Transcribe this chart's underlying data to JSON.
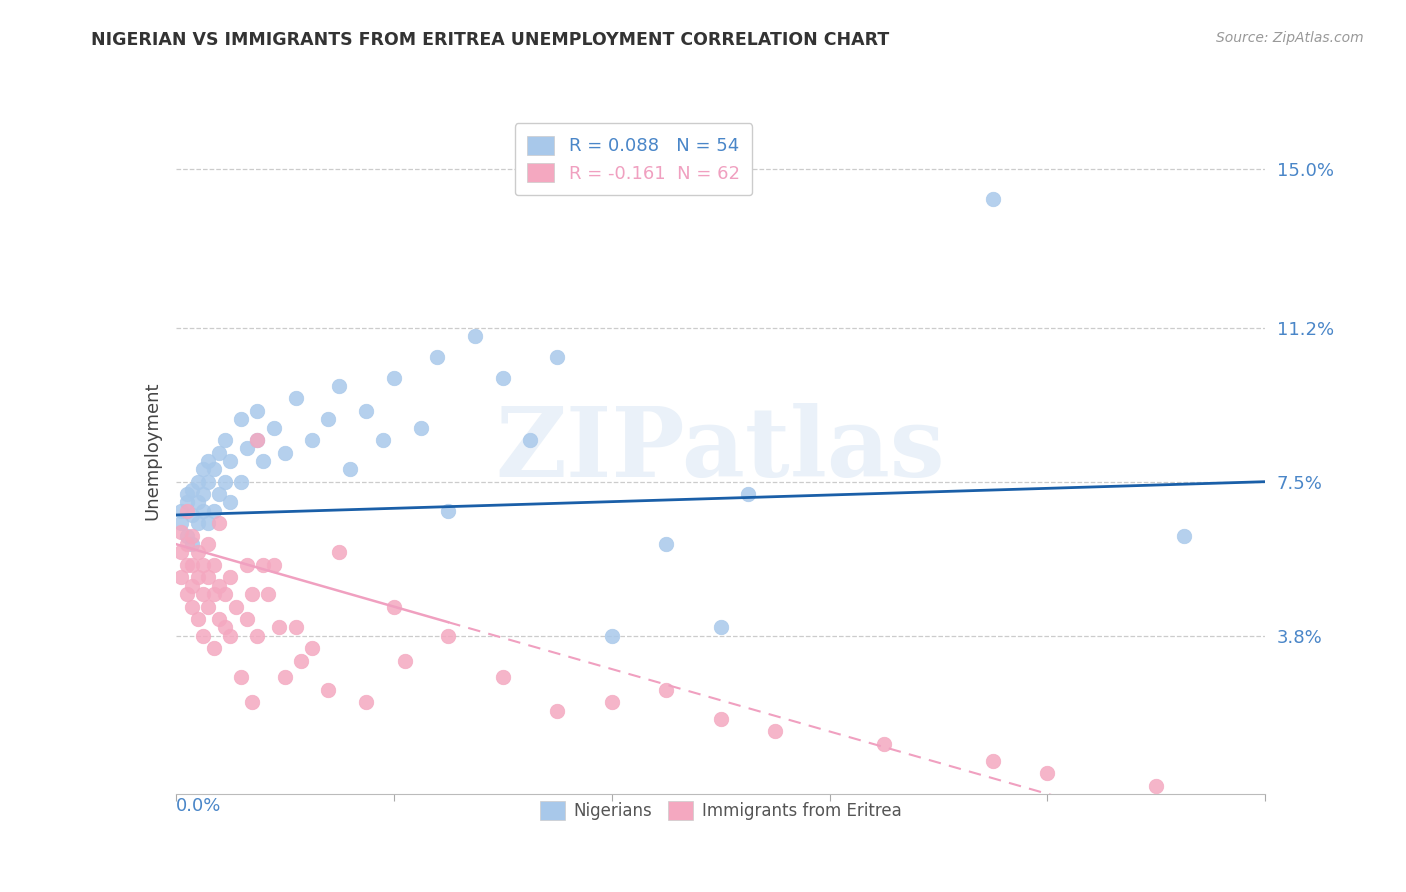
{
  "title": "NIGERIAN VS IMMIGRANTS FROM ERITREA UNEMPLOYMENT CORRELATION CHART",
  "source": "Source: ZipAtlas.com",
  "ylabel": "Unemployment",
  "yticks": [
    0.038,
    0.075,
    0.112,
    0.15
  ],
  "ytick_labels": [
    "3.8%",
    "7.5%",
    "11.2%",
    "15.0%"
  ],
  "xmin": 0.0,
  "xmax": 0.2,
  "ymin": 0.0,
  "ymax": 0.165,
  "legend_labels_bottom": [
    "Nigerians",
    "Immigrants from Eritrea"
  ],
  "nigerian_color": "#a8c8ea",
  "eritrea_color": "#f4a8c0",
  "nigerian_line_color": "#1a5fa8",
  "eritrea_line_color": "#f0a0c0",
  "watermark_text": "ZIPatlas",
  "nigerian_points": [
    [
      0.001,
      0.065
    ],
    [
      0.001,
      0.068
    ],
    [
      0.002,
      0.062
    ],
    [
      0.002,
      0.07
    ],
    [
      0.002,
      0.072
    ],
    [
      0.003,
      0.06
    ],
    [
      0.003,
      0.067
    ],
    [
      0.003,
      0.073
    ],
    [
      0.004,
      0.065
    ],
    [
      0.004,
      0.07
    ],
    [
      0.004,
      0.075
    ],
    [
      0.005,
      0.068
    ],
    [
      0.005,
      0.072
    ],
    [
      0.005,
      0.078
    ],
    [
      0.006,
      0.065
    ],
    [
      0.006,
      0.075
    ],
    [
      0.006,
      0.08
    ],
    [
      0.007,
      0.068
    ],
    [
      0.007,
      0.078
    ],
    [
      0.008,
      0.072
    ],
    [
      0.008,
      0.082
    ],
    [
      0.009,
      0.075
    ],
    [
      0.009,
      0.085
    ],
    [
      0.01,
      0.07
    ],
    [
      0.01,
      0.08
    ],
    [
      0.012,
      0.075
    ],
    [
      0.012,
      0.09
    ],
    [
      0.013,
      0.083
    ],
    [
      0.015,
      0.085
    ],
    [
      0.015,
      0.092
    ],
    [
      0.016,
      0.08
    ],
    [
      0.018,
      0.088
    ],
    [
      0.02,
      0.082
    ],
    [
      0.022,
      0.095
    ],
    [
      0.025,
      0.085
    ],
    [
      0.028,
      0.09
    ],
    [
      0.03,
      0.098
    ],
    [
      0.032,
      0.078
    ],
    [
      0.035,
      0.092
    ],
    [
      0.038,
      0.085
    ],
    [
      0.04,
      0.1
    ],
    [
      0.045,
      0.088
    ],
    [
      0.048,
      0.105
    ],
    [
      0.05,
      0.068
    ],
    [
      0.055,
      0.11
    ],
    [
      0.06,
      0.1
    ],
    [
      0.065,
      0.085
    ],
    [
      0.07,
      0.105
    ],
    [
      0.08,
      0.038
    ],
    [
      0.09,
      0.06
    ],
    [
      0.1,
      0.04
    ],
    [
      0.105,
      0.072
    ],
    [
      0.15,
      0.143
    ],
    [
      0.185,
      0.062
    ]
  ],
  "eritrea_points": [
    [
      0.001,
      0.052
    ],
    [
      0.001,
      0.058
    ],
    [
      0.001,
      0.063
    ],
    [
      0.002,
      0.048
    ],
    [
      0.002,
      0.055
    ],
    [
      0.002,
      0.06
    ],
    [
      0.002,
      0.068
    ],
    [
      0.003,
      0.05
    ],
    [
      0.003,
      0.055
    ],
    [
      0.003,
      0.062
    ],
    [
      0.003,
      0.045
    ],
    [
      0.004,
      0.052
    ],
    [
      0.004,
      0.058
    ],
    [
      0.004,
      0.042
    ],
    [
      0.005,
      0.048
    ],
    [
      0.005,
      0.055
    ],
    [
      0.005,
      0.038
    ],
    [
      0.006,
      0.052
    ],
    [
      0.006,
      0.06
    ],
    [
      0.006,
      0.045
    ],
    [
      0.007,
      0.048
    ],
    [
      0.007,
      0.055
    ],
    [
      0.007,
      0.035
    ],
    [
      0.008,
      0.065
    ],
    [
      0.008,
      0.05
    ],
    [
      0.008,
      0.042
    ],
    [
      0.009,
      0.048
    ],
    [
      0.009,
      0.04
    ],
    [
      0.01,
      0.052
    ],
    [
      0.01,
      0.038
    ],
    [
      0.011,
      0.045
    ],
    [
      0.012,
      0.028
    ],
    [
      0.013,
      0.055
    ],
    [
      0.013,
      0.042
    ],
    [
      0.014,
      0.048
    ],
    [
      0.014,
      0.022
    ],
    [
      0.015,
      0.085
    ],
    [
      0.015,
      0.038
    ],
    [
      0.016,
      0.055
    ],
    [
      0.017,
      0.048
    ],
    [
      0.018,
      0.055
    ],
    [
      0.019,
      0.04
    ],
    [
      0.02,
      0.028
    ],
    [
      0.022,
      0.04
    ],
    [
      0.023,
      0.032
    ],
    [
      0.025,
      0.035
    ],
    [
      0.028,
      0.025
    ],
    [
      0.03,
      0.058
    ],
    [
      0.035,
      0.022
    ],
    [
      0.04,
      0.045
    ],
    [
      0.042,
      0.032
    ],
    [
      0.05,
      0.038
    ],
    [
      0.06,
      0.028
    ],
    [
      0.07,
      0.02
    ],
    [
      0.08,
      0.022
    ],
    [
      0.09,
      0.025
    ],
    [
      0.1,
      0.018
    ],
    [
      0.11,
      0.015
    ],
    [
      0.13,
      0.012
    ],
    [
      0.15,
      0.008
    ],
    [
      0.16,
      0.005
    ],
    [
      0.18,
      0.002
    ]
  ]
}
